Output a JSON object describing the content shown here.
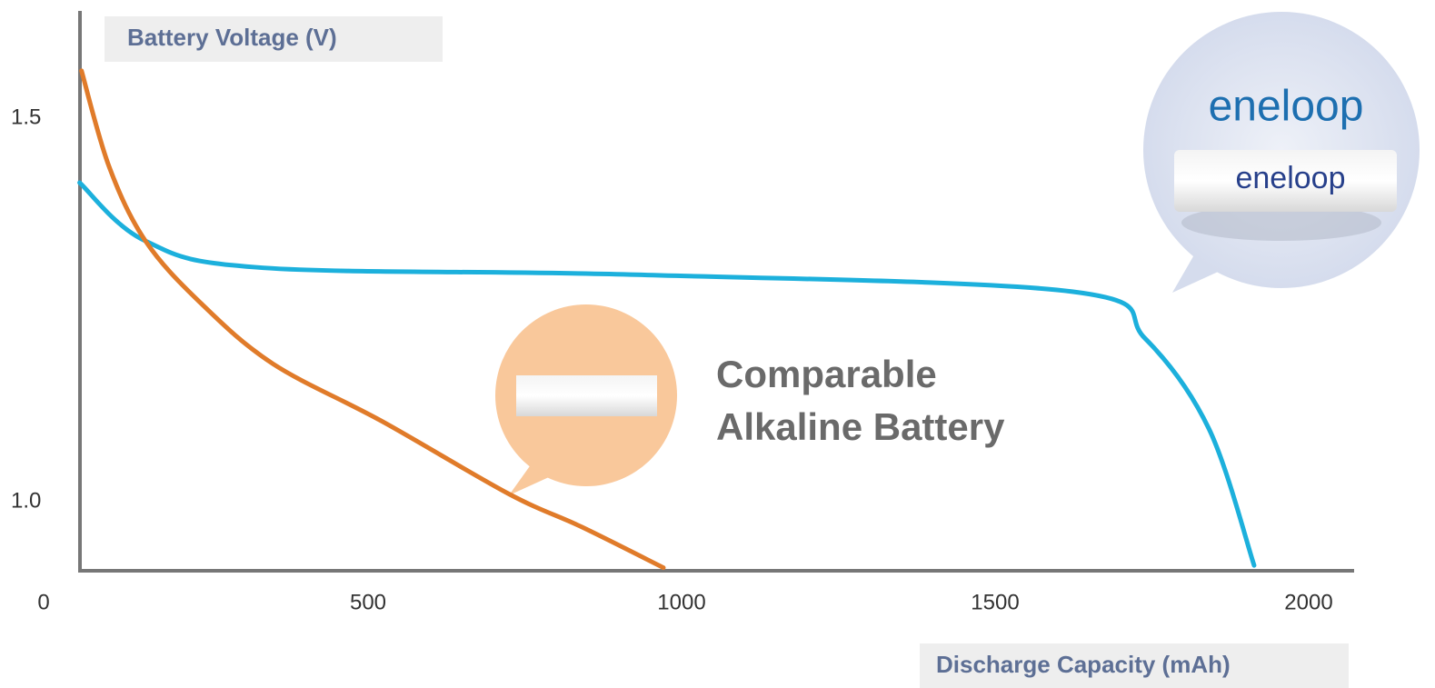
{
  "chart_data": {
    "type": "line",
    "y_label": "Battery Voltage (V)",
    "x_label": "Discharge Capacity (mAh)",
    "xlim": [
      0,
      2100
    ],
    "ylim": [
      0.91,
      1.64
    ],
    "xticks": [
      0,
      500,
      1000,
      1500,
      2000
    ],
    "yticks": [
      {
        "value": 1,
        "label": "1.0"
      },
      1.5
    ],
    "series": [
      {
        "name": "eneloop",
        "color": "#1cb0dc",
        "x": [
          40,
          145,
          333,
          928,
          1623,
          1739,
          1841,
          1913
        ],
        "values": [
          1.416,
          1.34,
          1.305,
          1.296,
          1.274,
          1.213,
          1.095,
          0.917
        ]
      },
      {
        "name": "Comparable Alkaline Battery",
        "color": "#e07b2a",
        "x": [
          43,
          87,
          145,
          232,
          348,
          522,
          725,
          841,
          971
        ],
        "values": [
          1.562,
          1.437,
          1.34,
          1.26,
          1.18,
          1.105,
          1.01,
          0.967,
          0.914
        ]
      }
    ]
  }
}
